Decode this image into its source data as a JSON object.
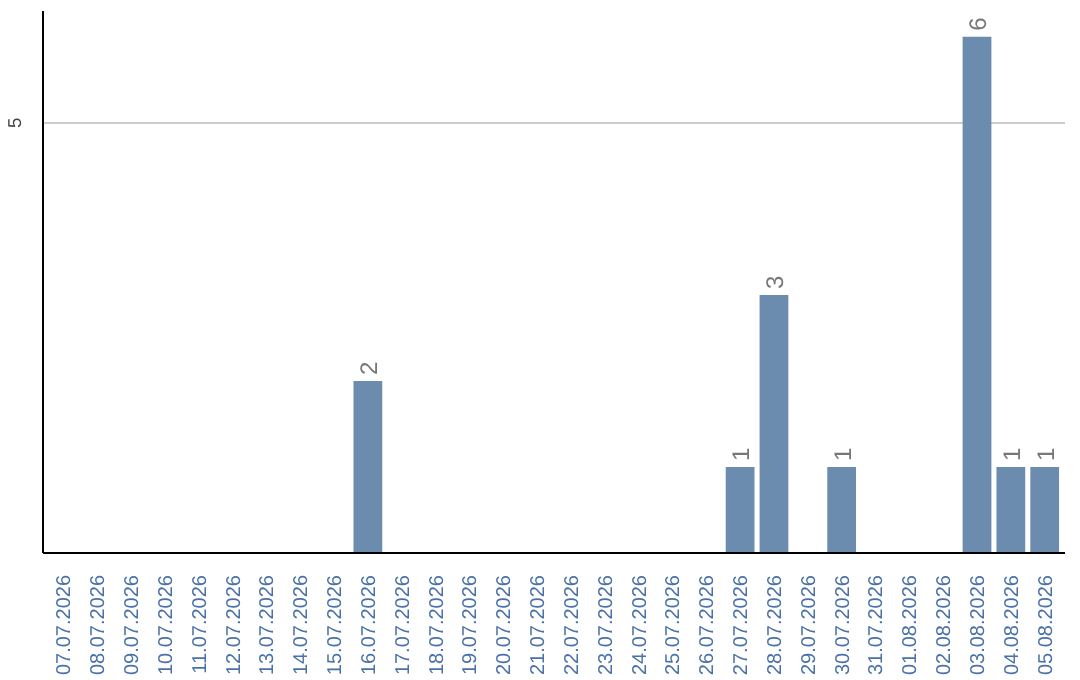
{
  "chart_data": {
    "type": "bar",
    "categories": [
      "07.07.2026",
      "08.07.2026",
      "09.07.2026",
      "10.07.2026",
      "11.07.2026",
      "12.07.2026",
      "13.07.2026",
      "14.07.2026",
      "15.07.2026",
      "16.07.2026",
      "17.07.2026",
      "18.07.2026",
      "19.07.2026",
      "20.07.2026",
      "21.07.2026",
      "22.07.2026",
      "23.07.2026",
      "24.07.2026",
      "25.07.2026",
      "26.07.2026",
      "27.07.2026",
      "28.07.2026",
      "29.07.2026",
      "30.07.2026",
      "31.07.2026",
      "01.08.2026",
      "02.08.2026",
      "03.08.2026",
      "04.08.2026",
      "05.08.2026"
    ],
    "values": [
      0,
      0,
      0,
      0,
      0,
      0,
      0,
      0,
      0,
      2,
      0,
      0,
      0,
      0,
      0,
      0,
      0,
      0,
      0,
      0,
      1,
      3,
      0,
      1,
      0,
      0,
      0,
      6,
      1,
      1
    ],
    "value_labels": [
      null,
      null,
      null,
      null,
      null,
      null,
      null,
      null,
      null,
      "2",
      null,
      null,
      null,
      null,
      null,
      null,
      null,
      null,
      null,
      null,
      "1",
      "3",
      null,
      "1",
      null,
      null,
      null,
      "6",
      "1",
      "1"
    ],
    "color": "#6b8cae",
    "ylim": [
      0,
      6.3
    ],
    "yticks": [
      5
    ],
    "grid": "y"
  }
}
